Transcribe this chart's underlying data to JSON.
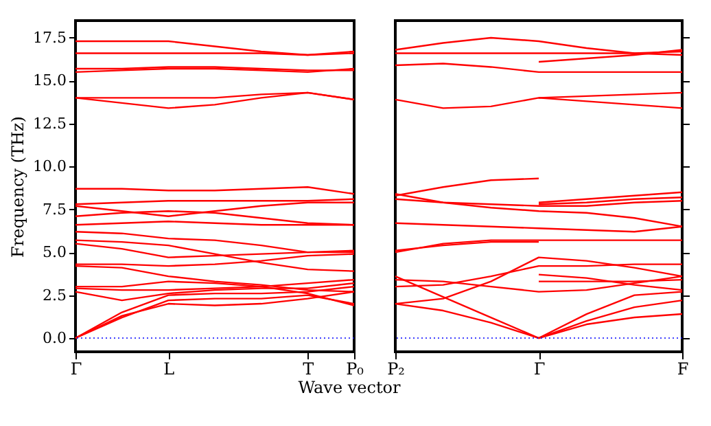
{
  "chart_data": [
    {
      "type": "line",
      "ylabel": "Frequency (THz)",
      "xlabel": "Wave vector",
      "ylim": [
        -0.8,
        18.5
      ],
      "categories": [
        "Γ",
        null,
        "L",
        null,
        null,
        "T",
        "P₀"
      ],
      "yticks": [
        {
          "value": 0,
          "label": "0.0"
        },
        {
          "value": 2.5,
          "label": "2.5"
        },
        {
          "value": 5,
          "label": "5.0"
        },
        {
          "value": 7.5,
          "label": "7.5"
        },
        {
          "value": 10,
          "label": "10.0"
        },
        {
          "value": 12.5,
          "label": "12.5"
        },
        {
          "value": 15,
          "label": "15.0"
        },
        {
          "value": 17.5,
          "label": "17.5"
        }
      ],
      "grid": false,
      "legend": false,
      "marker": "none",
      "line_style": "solid",
      "ref_lines": [
        {
          "axis": "y",
          "value": 0,
          "color": "#0000ff",
          "line_style": "dotted"
        }
      ],
      "series": [
        {
          "color": "#ff0000",
          "values": [
            0,
            1.2,
            2.2,
            2.3,
            2.3,
            2.5,
            2.0
          ]
        },
        {
          "color": "#ff0000",
          "values": [
            0,
            1.3,
            2.0,
            1.9,
            2.0,
            2.3,
            2.7
          ]
        },
        {
          "color": "#ff0000",
          "values": [
            0,
            1.5,
            2.5,
            2.6,
            2.6,
            2.7,
            3.0
          ]
        },
        {
          "color": "#ff0000",
          "values": [
            2.7,
            2.2,
            2.6,
            2.8,
            2.9,
            2.9,
            3.2
          ]
        },
        {
          "color": "#ff0000",
          "values": [
            2.9,
            2.8,
            2.8,
            2.9,
            3.0,
            3.2,
            3.4
          ]
        },
        {
          "color": "#ff0000",
          "values": [
            3.0,
            3.0,
            3.3,
            3.2,
            3.0,
            2.6,
            1.9
          ]
        },
        {
          "color": "#ff0000",
          "values": [
            4.2,
            4.1,
            3.6,
            3.3,
            3.1,
            2.8,
            2.7
          ]
        },
        {
          "color": "#ff0000",
          "values": [
            4.3,
            4.3,
            4.2,
            4.3,
            4.5,
            4.8,
            4.9
          ]
        },
        {
          "color": "#ff0000",
          "values": [
            5.5,
            5.2,
            4.7,
            4.8,
            4.9,
            5.0,
            5.0
          ]
        },
        {
          "color": "#ff0000",
          "values": [
            5.7,
            5.6,
            5.4,
            4.9,
            4.4,
            4.0,
            3.9
          ]
        },
        {
          "color": "#ff0000",
          "values": [
            6.2,
            6.1,
            5.8,
            5.7,
            5.4,
            5.0,
            5.1
          ]
        },
        {
          "color": "#ff0000",
          "values": [
            6.6,
            6.7,
            6.8,
            6.7,
            6.6,
            6.6,
            6.6
          ]
        },
        {
          "color": "#ff0000",
          "values": [
            7.1,
            7.3,
            7.4,
            7.3,
            7.0,
            6.7,
            6.6
          ]
        },
        {
          "color": "#ff0000",
          "values": [
            7.7,
            7.4,
            7.1,
            7.4,
            7.7,
            7.9,
            7.9
          ]
        },
        {
          "color": "#ff0000",
          "values": [
            7.8,
            7.9,
            8.0,
            8.0,
            8.0,
            8.0,
            8.1
          ]
        },
        {
          "color": "#ff0000",
          "values": [
            8.7,
            8.7,
            8.6,
            8.6,
            8.7,
            8.8,
            8.4
          ]
        },
        {
          "color": "#ff0000",
          "values": [
            14.0,
            13.7,
            13.4,
            13.6,
            14.0,
            14.3,
            13.9
          ]
        },
        {
          "color": "#ff0000",
          "values": [
            14.0,
            14.0,
            14.0,
            14.0,
            14.2,
            14.3,
            13.9
          ]
        },
        {
          "color": "#ff0000",
          "values": [
            15.5,
            15.6,
            15.7,
            15.7,
            15.6,
            15.5,
            15.7
          ]
        },
        {
          "color": "#ff0000",
          "values": [
            15.7,
            15.7,
            15.8,
            15.8,
            15.7,
            15.6,
            15.6
          ]
        },
        {
          "color": "#ff0000",
          "values": [
            16.6,
            16.6,
            16.6,
            16.6,
            16.6,
            16.5,
            16.7
          ]
        },
        {
          "color": "#ff0000",
          "values": [
            17.3,
            17.3,
            17.3,
            17.0,
            16.7,
            16.5,
            16.6
          ]
        }
      ]
    },
    {
      "type": "line",
      "ylim": [
        -0.8,
        18.5
      ],
      "tick_labels": "x",
      "categories": [
        "P₂",
        null,
        null,
        "Γ",
        null,
        null,
        "F"
      ],
      "yticks": [
        {
          "value": 0,
          "label": null
        },
        {
          "value": 2.5,
          "label": null
        },
        {
          "value": 5,
          "label": null
        },
        {
          "value": 7.5,
          "label": null
        },
        {
          "value": 10,
          "label": null
        },
        {
          "value": 12.5,
          "label": null
        },
        {
          "value": 15,
          "label": null
        },
        {
          "value": 17.5,
          "label": null
        }
      ],
      "grid": false,
      "legend": false,
      "marker": "none",
      "line_style": "solid",
      "ref_lines": [
        {
          "axis": "y",
          "value": 0,
          "color": "#0000ff",
          "line_style": "dotted"
        }
      ],
      "series": [
        {
          "color": "#ff0000",
          "values": [
            2.0,
            1.6,
            0.9,
            0,
            0.8,
            1.2,
            1.4
          ]
        },
        {
          "color": "#ff0000",
          "values": [
            3.6,
            2.4,
            1.2,
            0,
            1.0,
            1.8,
            2.2
          ]
        },
        {
          "color": "#ff0000",
          "values": [
            null,
            null,
            null,
            0,
            1.4,
            2.5,
            2.7
          ]
        },
        {
          "color": "#ff0000",
          "values": [
            3.4,
            3.3,
            3.0,
            2.7,
            2.8,
            3.2,
            3.6
          ]
        },
        {
          "color": "#ff0000",
          "values": [
            3.0,
            3.1,
            3.6,
            4.2,
            4.2,
            4.3,
            4.3
          ]
        },
        {
          "color": "#ff0000",
          "values": [
            2.0,
            2.3,
            3.3,
            4.7,
            4.5,
            4.1,
            3.6
          ]
        },
        {
          "color": "#ff0000",
          "values": [
            null,
            null,
            null,
            3.3,
            3.3,
            3.3,
            3.4
          ]
        },
        {
          "color": "#ff0000",
          "values": [
            null,
            null,
            null,
            3.7,
            3.5,
            3.1,
            2.8
          ]
        },
        {
          "color": "#ff0000",
          "values": [
            5.0,
            5.5,
            5.7,
            5.7,
            5.7,
            5.7,
            5.7
          ]
        },
        {
          "color": "#ff0000",
          "values": [
            5.1,
            5.4,
            5.6,
            5.6,
            null,
            null,
            null
          ]
        },
        {
          "color": "#ff0000",
          "values": [
            6.7,
            6.6,
            6.5,
            6.4,
            6.3,
            6.2,
            6.5
          ]
        },
        {
          "color": "#ff0000",
          "values": [
            8.1,
            7.9,
            7.8,
            7.7,
            7.7,
            7.9,
            8.0
          ]
        },
        {
          "color": "#ff0000",
          "values": [
            8.4,
            7.9,
            7.6,
            7.4,
            7.3,
            7.0,
            6.5
          ]
        },
        {
          "color": "#ff0000",
          "values": [
            null,
            null,
            null,
            7.8,
            7.9,
            8.1,
            8.2
          ]
        },
        {
          "color": "#ff0000",
          "values": [
            null,
            null,
            null,
            7.9,
            8.1,
            8.3,
            8.5
          ]
        },
        {
          "color": "#ff0000",
          "values": [
            8.3,
            8.8,
            9.2,
            9.3,
            null,
            null,
            null
          ]
        },
        {
          "color": "#ff0000",
          "values": [
            13.9,
            13.4,
            13.5,
            14.0,
            13.8,
            13.6,
            13.4
          ]
        },
        {
          "color": "#ff0000",
          "values": [
            null,
            null,
            null,
            14.0,
            14.1,
            14.2,
            14.3
          ]
        },
        {
          "color": "#ff0000",
          "values": [
            15.9,
            16.0,
            15.8,
            15.5,
            15.5,
            15.5,
            15.5
          ]
        },
        {
          "color": "#ff0000",
          "values": [
            null,
            null,
            null,
            16.1,
            16.3,
            16.5,
            16.8
          ]
        },
        {
          "color": "#ff0000",
          "values": [
            16.6,
            16.6,
            16.6,
            16.6,
            16.6,
            16.6,
            16.7
          ]
        },
        {
          "color": "#ff0000",
          "values": [
            16.8,
            17.2,
            17.5,
            17.3,
            16.9,
            16.6,
            16.5
          ]
        }
      ]
    }
  ]
}
